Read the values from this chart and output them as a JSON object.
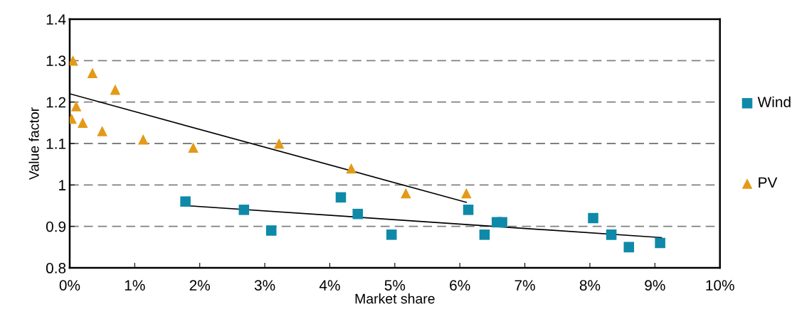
{
  "chart_data": {
    "type": "scatter",
    "xlabel": "Market share",
    "ylabel": "Value factor",
    "xlim": [
      0,
      10
    ],
    "ylim": [
      0.8,
      1.4
    ],
    "xticks": [
      {
        "value": 0,
        "label": "0%"
      },
      {
        "value": 1,
        "label": "1%"
      },
      {
        "value": 2,
        "label": "2%"
      },
      {
        "value": 3,
        "label": "3%"
      },
      {
        "value": 4,
        "label": "4%"
      },
      {
        "value": 5,
        "label": "5%"
      },
      {
        "value": 6,
        "label": "6%"
      },
      {
        "value": 7,
        "label": "7%"
      },
      {
        "value": 8,
        "label": "8%"
      },
      {
        "value": 9,
        "label": "9%"
      },
      {
        "value": 10,
        "label": "10%"
      }
    ],
    "yticks": [
      0.8,
      0.9,
      1,
      1.1,
      1.2,
      1.3,
      1.4
    ],
    "grid": "y",
    "legend": "right",
    "series": [
      {
        "name": "Wind",
        "color": "#0e8aa8",
        "marker": "square",
        "x": [
          1.78,
          2.68,
          3.1,
          4.17,
          4.43,
          4.95,
          6.13,
          6.38,
          6.57,
          6.65,
          8.05,
          8.33,
          8.6,
          9.08
        ],
        "values": [
          0.96,
          0.94,
          0.89,
          0.97,
          0.93,
          0.88,
          0.94,
          0.88,
          0.91,
          0.91,
          0.92,
          0.88,
          0.85,
          0.86
        ]
      },
      {
        "name": "PV",
        "color": "#e39a17",
        "marker": "triangle",
        "x": [
          0.03,
          0.05,
          0.1,
          0.2,
          0.35,
          0.5,
          0.7,
          1.13,
          1.9,
          3.22,
          4.33,
          5.17,
          6.1
        ],
        "values": [
          1.16,
          1.3,
          1.19,
          1.15,
          1.27,
          1.13,
          1.23,
          1.11,
          1.09,
          1.1,
          1.04,
          0.98,
          0.98
        ]
      },
      {
        "type": "line",
        "color": "#000000",
        "marker": "none",
        "x": [
          0,
          6.1
        ],
        "values": [
          1.22,
          0.958
        ]
      },
      {
        "type": "line",
        "color": "#000000",
        "marker": "none",
        "x": [
          1.8,
          9.1
        ],
        "values": [
          0.95,
          0.873
        ]
      }
    ]
  }
}
